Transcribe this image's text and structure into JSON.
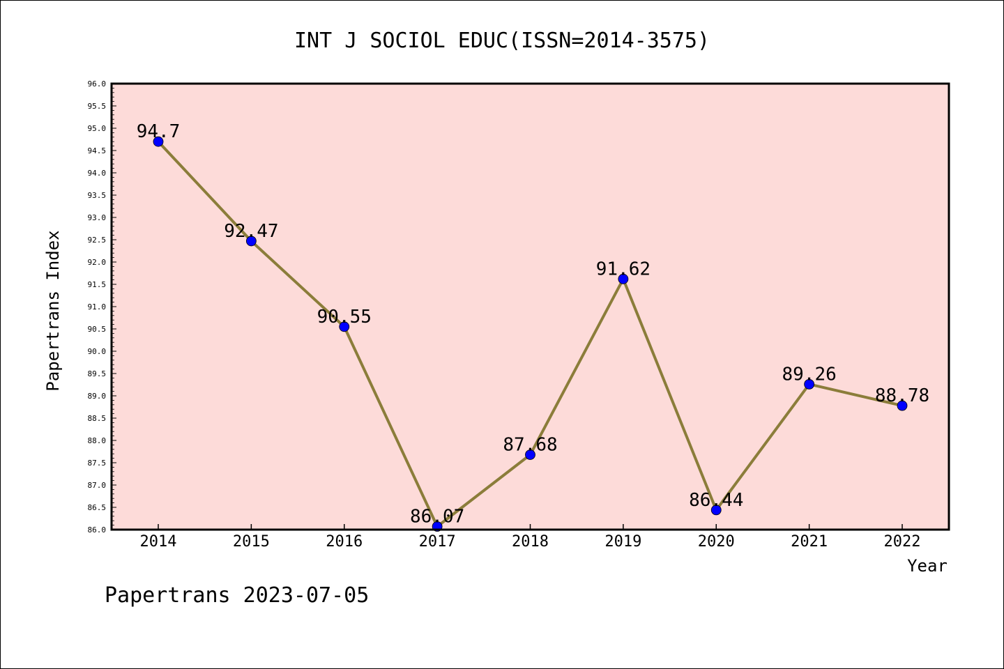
{
  "chart_data": {
    "type": "line",
    "title": "INT J SOCIOL EDUC(ISSN=2014-3575)",
    "xlabel": "Year",
    "ylabel": "Papertrans Index",
    "categories": [
      "2014",
      "2015",
      "2016",
      "2017",
      "2018",
      "2019",
      "2020",
      "2021",
      "2022"
    ],
    "series": [
      {
        "values": [
          94.7,
          92.47,
          90.55,
          86.07,
          87.68,
          91.62,
          86.44,
          89.26,
          88.78
        ]
      }
    ],
    "data_labels": [
      "94.7",
      "92.47",
      "90.55",
      "86.07",
      "87.68",
      "91.62",
      "86.44",
      "89.26",
      "88.78"
    ],
    "ylim": [
      86.0,
      96.0
    ],
    "y_ticks": [
      "86.0",
      "86.5",
      "87.0",
      "87.5",
      "88.0",
      "88.5",
      "89.0",
      "89.5",
      "90.0",
      "90.5",
      "91.0",
      "91.5",
      "92.0",
      "92.5",
      "93.0",
      "93.5",
      "94.0",
      "94.5",
      "95.0",
      "95.5",
      "96.0"
    ],
    "grid": false,
    "colors": {
      "plot_background": "#fddbd9",
      "line": "#8b7d3a",
      "marker": "#0000ff"
    }
  },
  "footer": "Papertrans 2023-07-05"
}
